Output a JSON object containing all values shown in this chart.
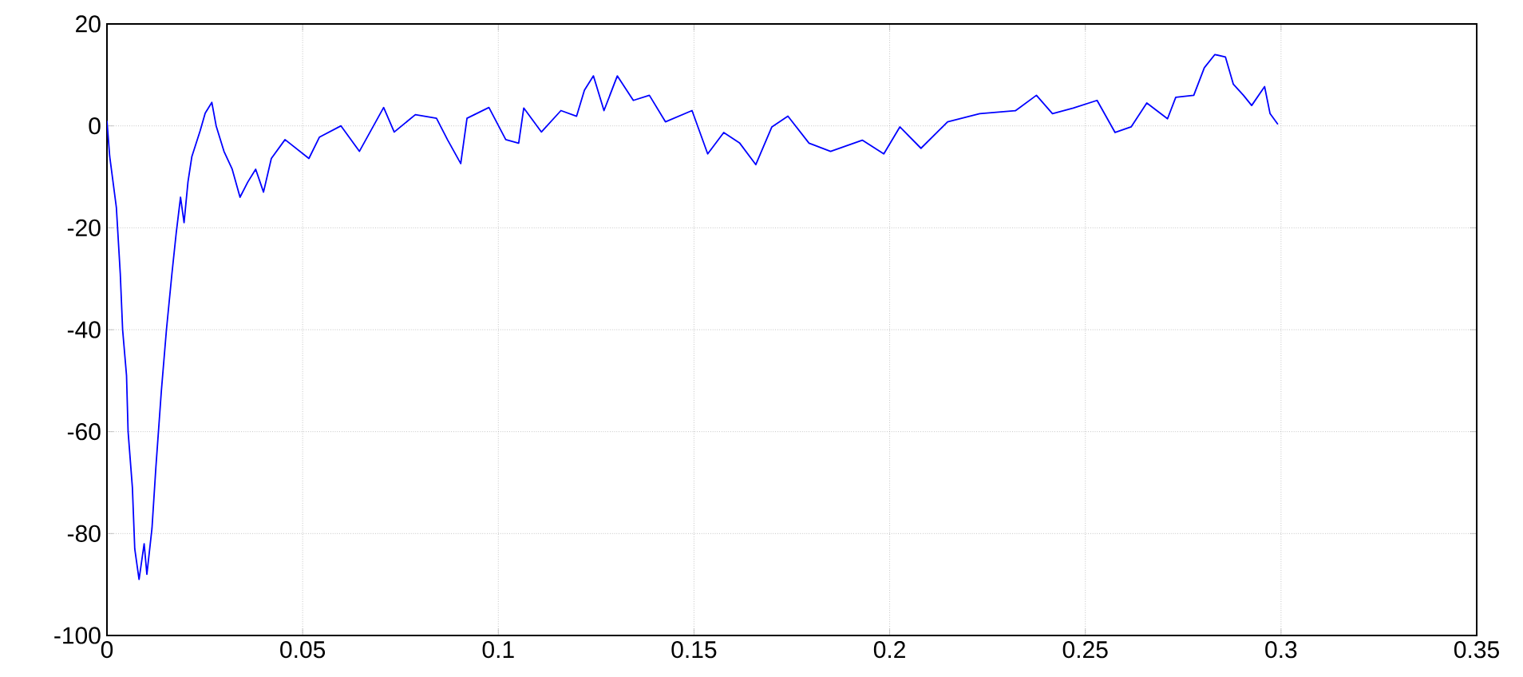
{
  "chart_data": {
    "type": "line",
    "color": "#0000ff",
    "x": [
      0,
      0.0007,
      0.0024,
      0.0034,
      0.004,
      0.005,
      0.0054,
      0.0065,
      0.0071,
      0.0082,
      0.0095,
      0.0102,
      0.0115,
      0.0125,
      0.0139,
      0.0152,
      0.0166,
      0.0177,
      0.0188,
      0.0197,
      0.0207,
      0.0217,
      0.0238,
      0.0251,
      0.0268,
      0.0279,
      0.0299,
      0.032,
      0.034,
      0.036,
      0.038,
      0.04,
      0.042,
      0.0455,
      0.0516,
      0.0543,
      0.0598,
      0.0645,
      0.0707,
      0.0734,
      0.0788,
      0.0842,
      0.087,
      0.0904,
      0.092,
      0.0976,
      0.1019,
      0.1052,
      0.1065,
      0.111,
      0.116,
      0.12,
      0.122,
      0.1243,
      0.127,
      0.1304,
      0.1345,
      0.1386,
      0.1427,
      0.1495,
      0.1535,
      0.1576,
      0.1617,
      0.1658,
      0.1699,
      0.174,
      0.1794,
      0.1849,
      0.193,
      0.1985,
      0.2026,
      0.208,
      0.2148,
      0.223,
      0.2322,
      0.2375,
      0.2416,
      0.2469,
      0.253,
      0.2576,
      0.2617,
      0.2657,
      0.271,
      0.2731,
      0.2777,
      0.2804,
      0.2831,
      0.2858,
      0.2878,
      0.2904,
      0.2925,
      0.2958,
      0.2972,
      0.2992
    ],
    "values": [
      1,
      -6,
      -16,
      -29,
      -40,
      -49,
      -60,
      -71,
      -83,
      -89,
      -82,
      -88,
      -79,
      -67,
      -52,
      -40,
      -29,
      -21,
      -14,
      -19,
      -11,
      -6,
      -1,
      2.5,
      4.6,
      0,
      -5,
      -8.5,
      -14,
      -11,
      -8.5,
      -13,
      -6.4,
      -2.7,
      -6.4,
      -2.2,
      0,
      -5,
      3.6,
      -1.2,
      2.2,
      1.5,
      -2.7,
      -7.4,
      1.5,
      3.6,
      -2.7,
      -3.4,
      3.5,
      -1.2,
      3,
      1.9,
      7,
      9.8,
      3,
      9.8,
      5,
      6,
      0.8,
      3,
      -5.5,
      -1.3,
      -3.4,
      -7.6,
      -0.2,
      1.9,
      -3.4,
      -5,
      -2.8,
      -5.5,
      -0.2,
      -4.4,
      0.8,
      2.4,
      3,
      6,
      2.4,
      3.5,
      5,
      -1.3,
      -0.2,
      4.5,
      1.4,
      5.6,
      6,
      11.4,
      14,
      13.5,
      8.2,
      6,
      4,
      7.7,
      2.4,
      0.3
    ],
    "xlim": [
      0,
      0.35
    ],
    "ylim": [
      -100,
      20
    ],
    "xticks": [
      0,
      0.05,
      0.1,
      0.15,
      0.2,
      0.25,
      0.3,
      0.35
    ],
    "yticks": [
      -100,
      -80,
      -60,
      -40,
      -20,
      0,
      20
    ],
    "grid": true
  }
}
